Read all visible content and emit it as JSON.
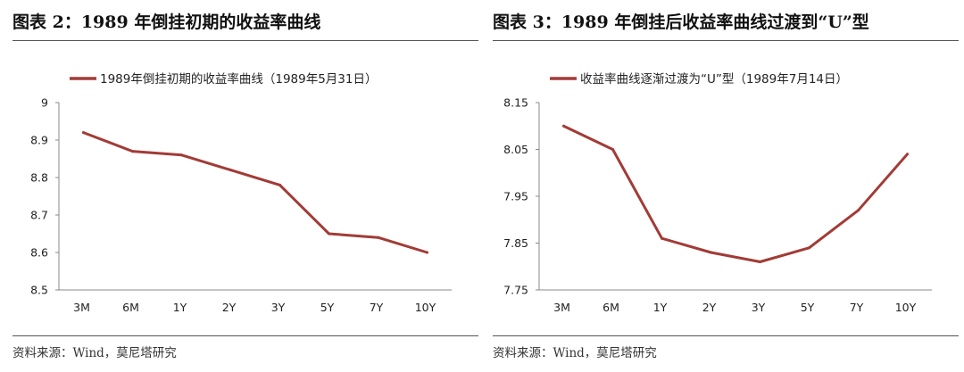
{
  "figures": [
    {
      "fig_title": "图表 2：1989 年倒挂初期的收益率曲线",
      "source": "资料来源：Wind，莫尼塔研究"
    },
    {
      "fig_title": "图表 3：1989 年倒挂后收益率曲线过渡到“U”型",
      "source": "资料来源：Wind，莫尼塔研究"
    }
  ],
  "chart_data": [
    {
      "type": "line",
      "categories": [
        "3M",
        "6M",
        "1Y",
        "2Y",
        "3Y",
        "5Y",
        "7Y",
        "10Y"
      ],
      "series": [
        {
          "name": "1989年倒挂初期的收益率曲线（1989年5月31日）",
          "values": [
            8.92,
            8.87,
            8.86,
            8.82,
            8.78,
            8.65,
            8.64,
            8.6
          ]
        }
      ],
      "ylim": [
        8.5,
        9.0
      ],
      "yticks": [
        "8.5",
        "8.6",
        "8.7",
        "8.8",
        "8.9",
        "9"
      ],
      "xlabel": "",
      "ylabel": "",
      "grid": false,
      "legend": "top-left",
      "color": "#a23b36"
    },
    {
      "type": "line",
      "categories": [
        "3M",
        "6M",
        "1Y",
        "2Y",
        "3Y",
        "5Y",
        "7Y",
        "10Y"
      ],
      "series": [
        {
          "name": "收益率曲线逐渐过渡为“U”型（1989年7月14日）",
          "values": [
            8.1,
            8.05,
            7.86,
            7.83,
            7.81,
            7.84,
            7.92,
            8.04
          ]
        }
      ],
      "ylim": [
        7.75,
        8.15
      ],
      "yticks": [
        "7.75",
        "7.85",
        "7.95",
        "8.05",
        "8.15"
      ],
      "xlabel": "",
      "ylabel": "",
      "grid": false,
      "legend": "top-left",
      "color": "#a23b36"
    }
  ]
}
